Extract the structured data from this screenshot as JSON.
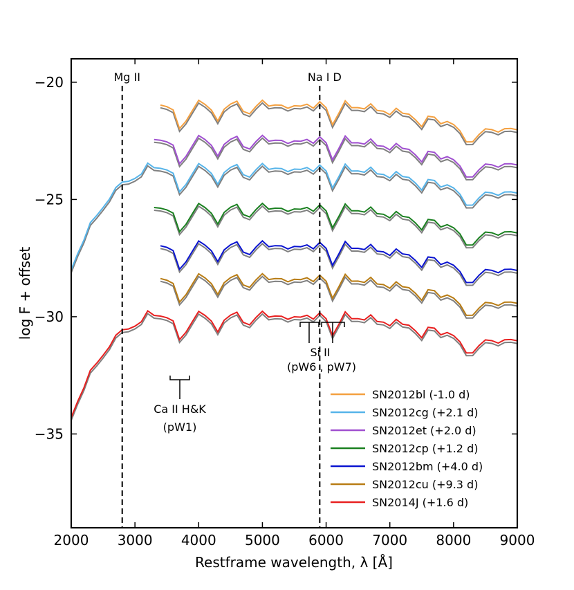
{
  "chart_data": {
    "type": "line",
    "xlabel": "Restframe wavelength, λ [Å]",
    "ylabel": "log F + offset",
    "xlim": [
      2000,
      9000
    ],
    "ylim": [
      -39,
      -19
    ],
    "xticks": [
      2000,
      3000,
      4000,
      5000,
      6000,
      7000,
      8000,
      9000
    ],
    "yticks": [
      -20,
      -25,
      -30,
      -35
    ],
    "legend_position": "lower-right",
    "model_color": "#808080",
    "series": [
      {
        "name": "SN2012bl (-1.0 d)",
        "color": "#f4a040",
        "offset": -20.9,
        "x": [
          3400,
          3500,
          3600,
          3700,
          3800,
          3900,
          4000,
          4100,
          4200,
          4300,
          4400,
          4500,
          4600,
          4700,
          4800,
          4900,
          5000,
          5100,
          5200,
          5300,
          5400,
          5500,
          5600,
          5700,
          5800,
          5900,
          6000,
          6100,
          6200,
          6300,
          6400,
          6500,
          6600,
          6700,
          6800,
          6900,
          7000,
          7100,
          7200,
          7300,
          7400,
          7500,
          7600,
          7700,
          7800,
          7900,
          8000,
          8100,
          8200,
          8300,
          8400,
          8500,
          8600,
          8700,
          8800,
          8900,
          9000
        ]
      },
      {
        "name": "SN2012cg (+2.1 d)",
        "color": "#56b4e9",
        "offset": -23.6,
        "x": [
          2000,
          2100,
          2200,
          2300,
          2400,
          2500,
          2600,
          2700,
          2800,
          2900,
          3000,
          3100,
          3200,
          3300,
          3400,
          3500,
          3600,
          3700,
          3800,
          3900,
          4000,
          4100,
          4200,
          4300,
          4400,
          4500,
          4600,
          4700,
          4800,
          4900,
          5000,
          5100,
          5200,
          5300,
          5400,
          5500,
          5600,
          5700,
          5800,
          5900,
          6000,
          6100,
          6200,
          6300,
          6400,
          6500,
          6600,
          6700,
          6800,
          6900,
          7000,
          7100,
          7200,
          7300,
          7400,
          7500,
          7600,
          7700,
          7800,
          7900,
          8000,
          8100,
          8200,
          8300,
          8400,
          8500,
          8600,
          8700,
          8800,
          8900,
          9000
        ]
      },
      {
        "name": "SN2012et (+2.0 d)",
        "color": "#a050d0",
        "offset": -22.4,
        "x": [
          3300,
          3400,
          3500,
          3600,
          3700,
          3800,
          3900,
          4000,
          4100,
          4200,
          4300,
          4400,
          4500,
          4600,
          4700,
          4800,
          4900,
          5000,
          5100,
          5200,
          5300,
          5400,
          5500,
          5600,
          5700,
          5800,
          5900,
          6000,
          6100,
          6200,
          6300,
          6400,
          6500,
          6600,
          6700,
          6800,
          6900,
          7000,
          7100,
          7200,
          7300,
          7400,
          7500,
          7600,
          7700,
          7800,
          7900,
          8000,
          8100,
          8200,
          8300,
          8400,
          8500,
          8600,
          8700,
          8800,
          8900,
          9000
        ]
      },
      {
        "name": "SN2012cp (+1.2 d)",
        "color": "#1a8020",
        "offset": -25.3,
        "x": [
          3300,
          3400,
          3500,
          3600,
          3700,
          3800,
          3900,
          4000,
          4100,
          4200,
          4300,
          4400,
          4500,
          4600,
          4700,
          4800,
          4900,
          5000,
          5100,
          5200,
          5300,
          5400,
          5500,
          5600,
          5700,
          5800,
          5900,
          6000,
          6100,
          6200,
          6300,
          6400,
          6500,
          6600,
          6700,
          6800,
          6900,
          7000,
          7100,
          7200,
          7300,
          7400,
          7500,
          7600,
          7700,
          7800,
          7900,
          8000,
          8100,
          8200,
          8300,
          8400,
          8500,
          8600,
          8700,
          8800,
          8900,
          9000
        ]
      },
      {
        "name": "SN2012bm (+4.0 d)",
        "color": "#0a14d0",
        "offset": -26.9,
        "x": [
          3400,
          3500,
          3600,
          3700,
          3800,
          3900,
          4000,
          4100,
          4200,
          4300,
          4400,
          4500,
          4600,
          4700,
          4800,
          4900,
          5000,
          5100,
          5200,
          5300,
          5400,
          5500,
          5600,
          5700,
          5800,
          5900,
          6000,
          6100,
          6200,
          6300,
          6400,
          6500,
          6600,
          6700,
          6800,
          6900,
          7000,
          7100,
          7200,
          7300,
          7400,
          7500,
          7600,
          7700,
          7800,
          7900,
          8000,
          8100,
          8200,
          8300,
          8400,
          8500,
          8600,
          8700,
          8800,
          8900,
          9000
        ]
      },
      {
        "name": "SN2012cu (+9.3 d)",
        "color": "#b87c14",
        "offset": -28.3,
        "x": [
          3400,
          3500,
          3600,
          3700,
          3800,
          3900,
          4000,
          4100,
          4200,
          4300,
          4400,
          4500,
          4600,
          4700,
          4800,
          4900,
          5000,
          5100,
          5200,
          5300,
          5400,
          5500,
          5600,
          5700,
          5800,
          5900,
          6000,
          6100,
          6200,
          6300,
          6400,
          6500,
          6600,
          6700,
          6800,
          6900,
          7000,
          7100,
          7200,
          7300,
          7400,
          7500,
          7600,
          7700,
          7800,
          7900,
          8000,
          8100,
          8200,
          8300,
          8400,
          8500,
          8600,
          8700,
          8800,
          8900,
          9000
        ]
      },
      {
        "name": "SN2014J (+1.6 d)",
        "color": "#e82020",
        "offset": -29.9,
        "x": [
          2000,
          2100,
          2200,
          2300,
          2400,
          2500,
          2600,
          2700,
          2800,
          2900,
          3000,
          3100,
          3200,
          3300,
          3400,
          3500,
          3600,
          3700,
          3800,
          3900,
          4000,
          4100,
          4200,
          4300,
          4400,
          4500,
          4600,
          4700,
          4800,
          4900,
          5000,
          5100,
          5200,
          5300,
          5400,
          5500,
          5600,
          5700,
          5800,
          5900,
          6000,
          6100,
          6200,
          6300,
          6400,
          6500,
          6600,
          6700,
          6800,
          6900,
          7000,
          7100,
          7200,
          7300,
          7400,
          7500,
          7600,
          7700,
          7800,
          7900,
          8000,
          8100,
          8200,
          8300,
          8400,
          8500,
          8600,
          8700,
          8800,
          8900,
          9000
        ]
      }
    ],
    "vlines": [
      {
        "x": 2800,
        "label": "Mg II"
      },
      {
        "x": 5900,
        "label": "Na I D"
      }
    ],
    "annotations": [
      {
        "line1": "Ca II H&K",
        "line2": "(pW1)"
      },
      {
        "line1": "Si II",
        "line2": "(pW6 , pW7)"
      }
    ]
  }
}
